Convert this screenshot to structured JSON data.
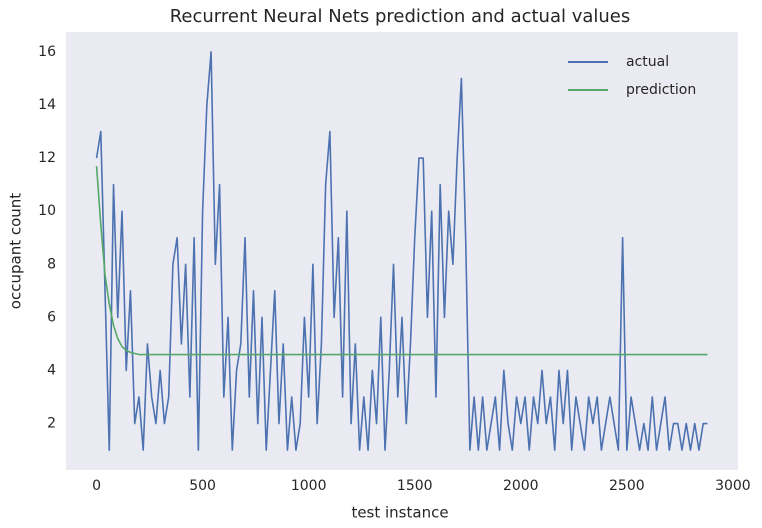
{
  "chart_data": {
    "type": "line",
    "title": "Recurrent Neural Nets prediction and actual values",
    "xlabel": "test instance",
    "ylabel": "occupant count",
    "x": [
      0,
      20,
      40,
      60,
      80,
      100,
      120,
      140,
      160,
      180,
      200,
      220,
      240,
      260,
      280,
      300,
      320,
      340,
      360,
      380,
      400,
      420,
      440,
      460,
      480,
      500,
      520,
      540,
      560,
      580,
      600,
      620,
      640,
      660,
      680,
      700,
      720,
      740,
      760,
      780,
      800,
      820,
      840,
      860,
      880,
      900,
      920,
      940,
      960,
      980,
      1000,
      1020,
      1040,
      1060,
      1080,
      1100,
      1120,
      1140,
      1160,
      1180,
      1200,
      1220,
      1240,
      1260,
      1280,
      1300,
      1320,
      1340,
      1360,
      1380,
      1400,
      1420,
      1440,
      1460,
      1480,
      1500,
      1520,
      1540,
      1560,
      1580,
      1600,
      1620,
      1640,
      1660,
      1680,
      1700,
      1720,
      1740,
      1760,
      1780,
      1800,
      1820,
      1840,
      1860,
      1880,
      1900,
      1920,
      1940,
      1960,
      1980,
      2000,
      2020,
      2040,
      2060,
      2080,
      2100,
      2120,
      2140,
      2160,
      2180,
      2200,
      2220,
      2240,
      2260,
      2280,
      2300,
      2320,
      2340,
      2360,
      2380,
      2400,
      2420,
      2440,
      2460,
      2480,
      2500,
      2520,
      2540,
      2560,
      2580,
      2600,
      2620,
      2640,
      2660,
      2680,
      2700,
      2720,
      2740,
      2760,
      2780,
      2800,
      2820,
      2840,
      2860,
      2880
    ],
    "series": [
      {
        "name": "actual",
        "color": "#4c72b0",
        "values": [
          12,
          13,
          7,
          1,
          11,
          6,
          10,
          4,
          7,
          2,
          3,
          1,
          5,
          3,
          2,
          4,
          2,
          3,
          8,
          9,
          5,
          8,
          3,
          9,
          1,
          10,
          14,
          16,
          8,
          11,
          3,
          6,
          1,
          4,
          5,
          9,
          3,
          7,
          2,
          6,
          1,
          4,
          7,
          2,
          5,
          1,
          3,
          1,
          2,
          6,
          3,
          8,
          2,
          5,
          11,
          13,
          6,
          9,
          3,
          10,
          2,
          5,
          1,
          3,
          1,
          4,
          2,
          6,
          1,
          4,
          8,
          3,
          6,
          2,
          5,
          9,
          12,
          12,
          6,
          10,
          3,
          11,
          6,
          10,
          8,
          12,
          15,
          9,
          1,
          3,
          1,
          3,
          1,
          2,
          3,
          1,
          4,
          2,
          1,
          3,
          2,
          3,
          1,
          3,
          2,
          4,
          2,
          3,
          1,
          4,
          2,
          4,
          1,
          3,
          2,
          1,
          3,
          2,
          3,
          1,
          2,
          3,
          2,
          1,
          9,
          1,
          3,
          2,
          1,
          2,
          1,
          3,
          1,
          2,
          3,
          1,
          2,
          2,
          1,
          2,
          1,
          2,
          1,
          2,
          2
        ]
      },
      {
        "name": "prediction",
        "color": "#55a868",
        "values": [
          11.7,
          9.5,
          7.6,
          6.5,
          5.7,
          5.2,
          4.9,
          4.75,
          4.68,
          4.64,
          4.6,
          4.6,
          4.6,
          4.6,
          4.6,
          4.6,
          4.6,
          4.6,
          4.6,
          4.6,
          4.6,
          4.6,
          4.6,
          4.6,
          4.6,
          4.6,
          4.6,
          4.6,
          4.6,
          4.6,
          4.6,
          4.6,
          4.6,
          4.6,
          4.6,
          4.6,
          4.6,
          4.6,
          4.6,
          4.6,
          4.6,
          4.6,
          4.6,
          4.6,
          4.6,
          4.6,
          4.6,
          4.6,
          4.6,
          4.6,
          4.6,
          4.6,
          4.6,
          4.6,
          4.6,
          4.6,
          4.6,
          4.6,
          4.6,
          4.6,
          4.6,
          4.6,
          4.6,
          4.6,
          4.6,
          4.6,
          4.6,
          4.6,
          4.6,
          4.6,
          4.6,
          4.6,
          4.6,
          4.6,
          4.6,
          4.6,
          4.6,
          4.6,
          4.6,
          4.6,
          4.6,
          4.6,
          4.6,
          4.6,
          4.6,
          4.6,
          4.6,
          4.6,
          4.6,
          4.6,
          4.6,
          4.6,
          4.6,
          4.6,
          4.6,
          4.6,
          4.6,
          4.6,
          4.6,
          4.6,
          4.6,
          4.6,
          4.6,
          4.6,
          4.6,
          4.6,
          4.6,
          4.6,
          4.6,
          4.6,
          4.6,
          4.6,
          4.6,
          4.6,
          4.6,
          4.6,
          4.6,
          4.6,
          4.6,
          4.6,
          4.6,
          4.6,
          4.6,
          4.6,
          4.6,
          4.6,
          4.6,
          4.6,
          4.6,
          4.6,
          4.6,
          4.6,
          4.6,
          4.6,
          4.6,
          4.6,
          4.6,
          4.6,
          4.6,
          4.6,
          4.6,
          4.6,
          4.6,
          4.6,
          4.6
        ]
      }
    ],
    "xlim": [
      -144,
      3024
    ],
    "ylim": [
      0.25,
      16.75
    ],
    "xticks": [
      0,
      500,
      1000,
      1500,
      2000,
      2500,
      3000
    ],
    "yticks": [
      2,
      4,
      6,
      8,
      10,
      12,
      14,
      16
    ],
    "grid": false,
    "legend": "upper right"
  }
}
